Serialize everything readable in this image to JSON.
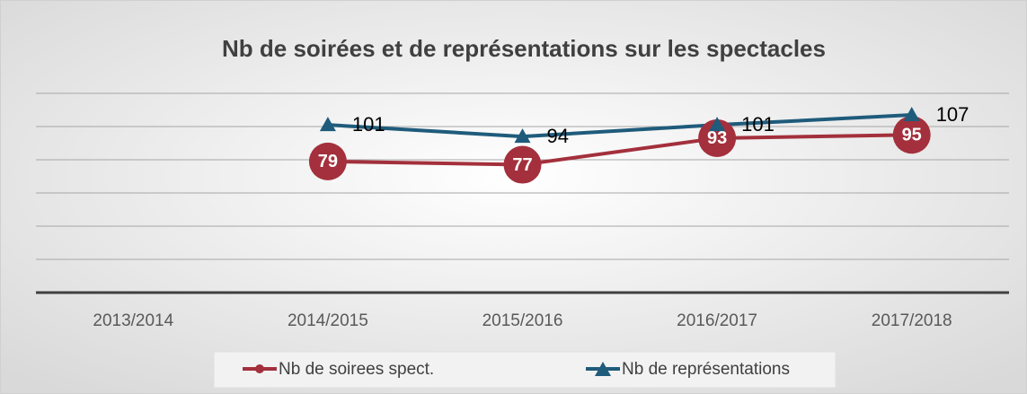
{
  "chart_data": {
    "type": "line",
    "title": "Nb de soirées et de représentations sur les spectacles",
    "categories": [
      "2013/2014",
      "2014/2015",
      "2015/2016",
      "2016/2017",
      "2017/2018"
    ],
    "series": [
      {
        "name": "Nb de soirees spect.",
        "color": "#a3303c",
        "marker": "circle",
        "values": [
          null,
          79,
          77,
          93,
          95
        ]
      },
      {
        "name": "Nb de représentations",
        "color": "#1f5b7b",
        "marker": "triangle",
        "values": [
          null,
          101,
          94,
          101,
          107
        ]
      }
    ],
    "ylim": [
      0,
      120
    ],
    "yticks": [
      0,
      20,
      40,
      60,
      80,
      100,
      120
    ],
    "grid": true,
    "legend": "bottom"
  }
}
